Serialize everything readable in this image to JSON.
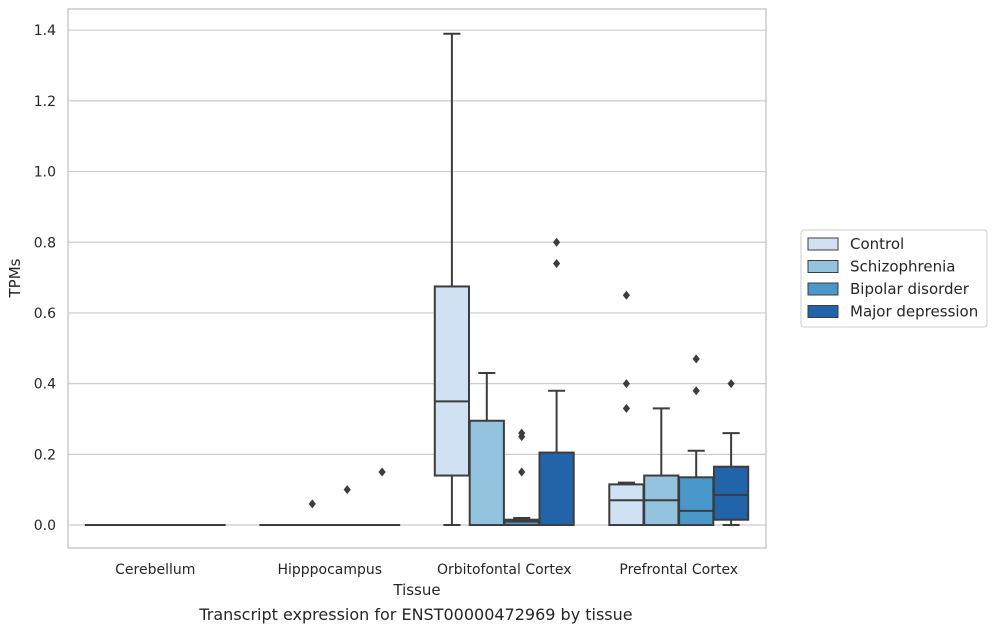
{
  "caption": "Transcript expression for ENST00000472969 by tissue",
  "chart_data": {
    "type": "box",
    "xlabel": "Tissue",
    "ylabel": "TPMs",
    "ylim": [
      -0.065,
      1.46
    ],
    "yticks": [
      0.0,
      0.2,
      0.4,
      0.6,
      0.8,
      1.0,
      1.2,
      1.4
    ],
    "ytick_labels": [
      "0.0",
      "0.2",
      "0.4",
      "0.6",
      "0.8",
      "1.0",
      "1.2",
      "1.4"
    ],
    "grid": "horizontal",
    "legend_position": "right",
    "categories": [
      "Cerebellum",
      "Hipppocampus",
      "Orbitofontal Cortex",
      "Prefrontal Cortex"
    ],
    "series": [
      {
        "name": "Control",
        "color": "#cfe1f2",
        "boxes": [
          {
            "min": 0,
            "q1": 0,
            "median": 0,
            "q3": 0,
            "max": 0,
            "outliers": []
          },
          {
            "min": 0,
            "q1": 0,
            "median": 0,
            "q3": 0,
            "max": 0,
            "outliers": []
          },
          {
            "min": 0,
            "q1": 0.14,
            "median": 0.35,
            "q3": 0.675,
            "max": 1.39,
            "outliers": []
          },
          {
            "min": 0,
            "q1": 0,
            "median": 0.07,
            "q3": 0.115,
            "max": 0.12,
            "outliers": [
              0.33,
              0.4,
              0.65
            ]
          }
        ]
      },
      {
        "name": "Schizophrenia",
        "color": "#93c3df",
        "boxes": [
          {
            "min": 0,
            "q1": 0,
            "median": 0,
            "q3": 0,
            "max": 0,
            "outliers": []
          },
          {
            "min": 0,
            "q1": 0,
            "median": 0,
            "q3": 0,
            "max": 0,
            "outliers": [
              0.06
            ]
          },
          {
            "min": 0,
            "q1": 0,
            "median": 0,
            "q3": 0.295,
            "max": 0.43,
            "outliers": []
          },
          {
            "min": 0,
            "q1": 0,
            "median": 0.07,
            "q3": 0.14,
            "max": 0.33,
            "outliers": []
          }
        ]
      },
      {
        "name": "Bipolar disorder",
        "color": "#4a98c9",
        "boxes": [
          {
            "min": 0,
            "q1": 0,
            "median": 0,
            "q3": 0,
            "max": 0,
            "outliers": []
          },
          {
            "min": 0,
            "q1": 0,
            "median": 0,
            "q3": 0,
            "max": 0,
            "outliers": [
              0.1
            ]
          },
          {
            "min": 0,
            "q1": 0,
            "median": 0.01,
            "q3": 0.015,
            "max": 0.02,
            "outliers": [
              0.15,
              0.25,
              0.26
            ]
          },
          {
            "min": 0,
            "q1": 0,
            "median": 0.04,
            "q3": 0.135,
            "max": 0.21,
            "outliers": [
              0.38,
              0.47
            ]
          }
        ]
      },
      {
        "name": "Major depression",
        "color": "#2164aa",
        "boxes": [
          {
            "min": 0,
            "q1": 0,
            "median": 0,
            "q3": 0,
            "max": 0,
            "outliers": []
          },
          {
            "min": 0,
            "q1": 0,
            "median": 0,
            "q3": 0,
            "max": 0,
            "outliers": [
              0.15
            ]
          },
          {
            "min": 0,
            "q1": 0,
            "median": 0,
            "q3": 0.205,
            "max": 0.38,
            "outliers": [
              0.74,
              0.8
            ]
          },
          {
            "min": 0,
            "q1": 0.015,
            "median": 0.085,
            "q3": 0.165,
            "max": 0.26,
            "outliers": [
              0.4
            ]
          }
        ]
      }
    ]
  }
}
